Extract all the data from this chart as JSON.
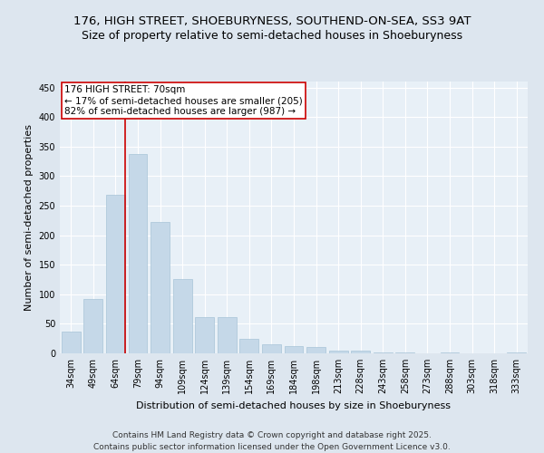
{
  "title1": "176, HIGH STREET, SHOEBURYNESS, SOUTHEND-ON-SEA, SS3 9AT",
  "title2": "Size of property relative to semi-detached houses in Shoeburyness",
  "xlabel": "Distribution of semi-detached houses by size in Shoeburyness",
  "ylabel": "Number of semi-detached properties",
  "categories": [
    "34sqm",
    "49sqm",
    "64sqm",
    "79sqm",
    "94sqm",
    "109sqm",
    "124sqm",
    "139sqm",
    "154sqm",
    "169sqm",
    "184sqm",
    "198sqm",
    "213sqm",
    "228sqm",
    "243sqm",
    "258sqm",
    "273sqm",
    "288sqm",
    "303sqm",
    "318sqm",
    "333sqm"
  ],
  "values": [
    37,
    92,
    268,
    338,
    223,
    126,
    62,
    62,
    25,
    16,
    12,
    10,
    5,
    4,
    2,
    1,
    0,
    1,
    0,
    0,
    1
  ],
  "bar_color": "#c5d8e8",
  "bar_edge_color": "#a8c4d8",
  "vline_color": "#cc0000",
  "vline_pos": 2.42,
  "annotation_title": "176 HIGH STREET: 70sqm",
  "annotation_line1": "← 17% of semi-detached houses are smaller (205)",
  "annotation_line2": "82% of semi-detached houses are larger (987) →",
  "annotation_box_color": "#ffffff",
  "annotation_box_edge": "#cc0000",
  "footer1": "Contains HM Land Registry data © Crown copyright and database right 2025.",
  "footer2": "Contains public sector information licensed under the Open Government Licence v3.0.",
  "ylim": [
    0,
    460
  ],
  "yticks": [
    0,
    50,
    100,
    150,
    200,
    250,
    300,
    350,
    400,
    450
  ],
  "bg_color": "#dde6ef",
  "plot_bg_color": "#e8f0f7",
  "title1_fontsize": 9.5,
  "title2_fontsize": 9,
  "axis_label_fontsize": 8,
  "tick_fontsize": 7,
  "footer_fontsize": 6.5,
  "annot_fontsize": 7.5
}
